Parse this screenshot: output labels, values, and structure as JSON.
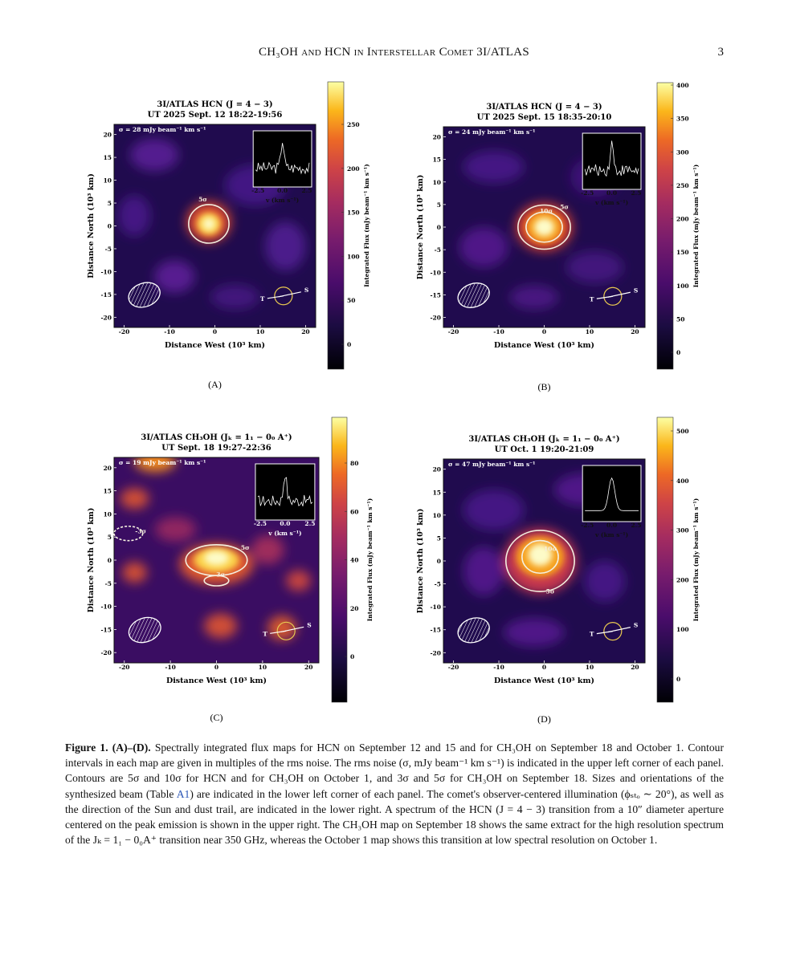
{
  "header": {
    "title": "CH₃OH and HCN in Interstellar Comet 3I/ATLAS",
    "page": "3"
  },
  "axes": {
    "x_label": "Distance West (10³ km)",
    "y_label": "Distance North (10³ km)",
    "xticks": [
      -20,
      -10,
      0,
      10,
      20
    ],
    "yticks": [
      20,
      15,
      10,
      5,
      0,
      -5,
      -10,
      -15,
      -20
    ],
    "colorbar_label": "Integrated Flux (mJy beam⁻¹ km s⁻¹)",
    "inset_ticks": [
      "-2.5",
      "0.0",
      "2.5"
    ],
    "inset_label": "v (km s⁻¹)",
    "sun": "S",
    "trail": "T"
  },
  "panels": [
    {
      "title": [
        "3I/ATLAS HCN (J = 4 − 3)",
        "UT 2025 Sept. 12 18:22-19:56"
      ],
      "rms": "σ = 28 mJy beam⁻¹ km s⁻¹",
      "colorbar_ticks": [
        250,
        200,
        150,
        100,
        50,
        0
      ],
      "contours": [
        "5σ"
      ],
      "label": "(A)"
    },
    {
      "title": [
        "3I/ATLAS HCN (J = 4 − 3)",
        "UT 2025 Sept. 15 18:35-20:10"
      ],
      "rms": "σ = 24 mJy beam⁻¹ km s⁻¹",
      "colorbar_ticks": [
        400,
        350,
        300,
        250,
        200,
        150,
        100,
        50,
        0
      ],
      "contours": [
        "10σ",
        "5σ"
      ],
      "label": "(B)"
    },
    {
      "title": [
        "3I/ATLAS CH₃OH (Jₖ = 1₁ − 0₀ A⁺)",
        "UT Sept. 18 19:27-22:36"
      ],
      "rms": "σ = 19 mJy beam⁻¹ km s⁻¹",
      "colorbar_ticks": [
        80,
        60,
        40,
        20,
        0
      ],
      "contours": [
        "5σ",
        "3σ",
        "-3σ"
      ],
      "label": "(C)"
    },
    {
      "title": [
        "3I/ATLAS CH₃OH (Jₖ = 1₁ − 0₀ A⁺)",
        "UT Oct. 1 19:20-21:09"
      ],
      "rms": "σ = 47 mJy beam⁻¹ km s⁻¹",
      "colorbar_ticks": [
        500,
        400,
        300,
        200,
        100,
        0
      ],
      "contours": [
        "10σ",
        "5σ"
      ],
      "label": "(D)"
    }
  ],
  "caption": {
    "label": "Figure 1. (A)–(D).",
    "text_1": "Spectrally integrated flux maps for HCN on September 12 and 15 and for CH₃OH on September 18 and October 1. Contour intervals in each map are given in multiples of the rms noise. The rms noise (σ, mJy beam⁻¹ km s⁻¹) is indicated in the upper left corner of each panel. Contours are 5σ and 10σ for HCN and for CH₃OH on October 1, and 3σ and 5σ for CH₃OH on September 18. Sizes and orientations of the synthesized beam (Table",
    "link": "A1",
    "text_2": ") are indicated in the lower left corner of each panel. The comet's observer-centered illumination (ϕₛₜₒ ∼ 20°), as well as the direction of the Sun and dust trail, are indicated in the lower right. A spectrum of the HCN (J = 4 − 3) transition from a 10″ diameter aperture centered on the peak emission is shown in the upper right. The CH₃OH map on September 18 shows the same extract for the high resolution spectrum of the Jₖ = 1₁ − 0₀A⁺ transition near 350 GHz, whereas the October 1 map shows this transition at low spectral resolution on October 1."
  }
}
